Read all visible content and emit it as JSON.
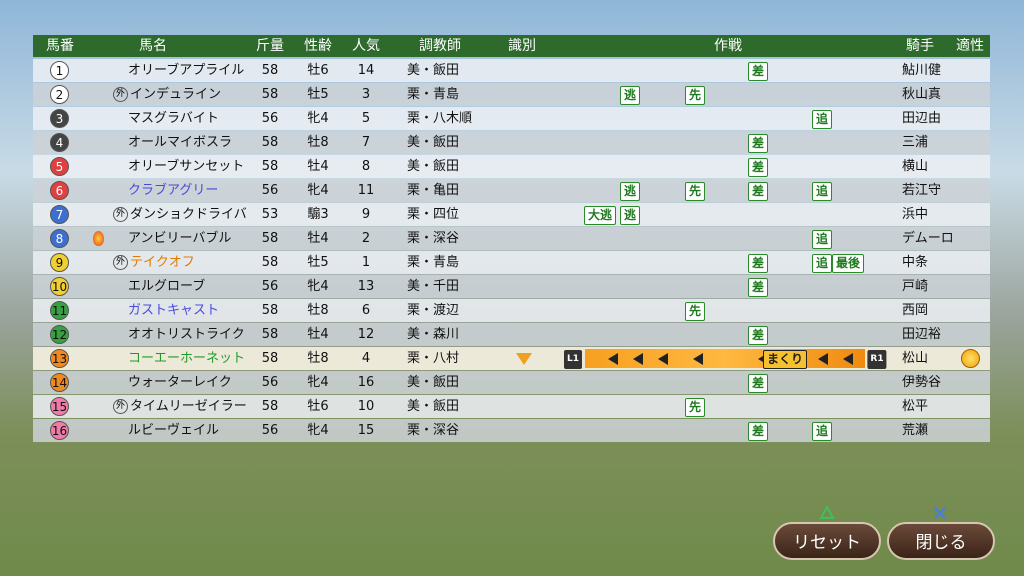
{
  "header": {
    "columns": [
      "馬番",
      "馬名",
      "斤量",
      "性齢",
      "人気",
      "調教師",
      "識別",
      "作戦",
      "騎手",
      "適性"
    ]
  },
  "rows": [
    {
      "number": 1,
      "name": "オリーブアプライル",
      "weight": 58,
      "sex_age": "牡6",
      "popularity": 14,
      "trainer": "美・飯田",
      "tactics": [
        "差"
      ],
      "jockey": "鮎川健"
    },
    {
      "number": 2,
      "mark": "外",
      "name": "インデュライン",
      "weight": 58,
      "sex_age": "牡5",
      "popularity": 3,
      "trainer": "栗・青島",
      "tactics": [
        "逃",
        "先"
      ],
      "jockey": "秋山真"
    },
    {
      "number": 3,
      "name": "マスグラバイト",
      "weight": 56,
      "sex_age": "牝4",
      "popularity": 5,
      "trainer": "栗・八木順",
      "tactics": [
        "追"
      ],
      "jockey": "田辺由"
    },
    {
      "number": 4,
      "name": "オールマイボスラ",
      "weight": 58,
      "sex_age": "牡8",
      "popularity": 7,
      "trainer": "美・飯田",
      "tactics": [
        "差"
      ],
      "jockey": "三浦"
    },
    {
      "number": 5,
      "name": "オリーブサンセット",
      "weight": 58,
      "sex_age": "牡4",
      "popularity": 8,
      "trainer": "美・飯田",
      "tactics": [
        "差"
      ],
      "jockey": "横山"
    },
    {
      "number": 6,
      "name": "クラブアグリー",
      "name_color": "#4a4ad8",
      "weight": 56,
      "sex_age": "牝4",
      "popularity": 11,
      "trainer": "栗・亀田",
      "tactics": [
        "逃",
        "先",
        "差",
        "追"
      ],
      "jockey": "若江守"
    },
    {
      "number": 7,
      "mark": "外",
      "name": "ダンショクドライバ",
      "weight": 53,
      "sex_age": "騸3",
      "popularity": 9,
      "trainer": "栗・四位",
      "tactics": [
        "大逃",
        "逃"
      ],
      "jockey": "浜中"
    },
    {
      "number": 8,
      "name": "アンビリーバブル",
      "weight": 58,
      "sex_age": "牡4",
      "popularity": 2,
      "trainer": "栗・深谷",
      "tactics": [
        "追"
      ],
      "jockey": "デムーロ"
    },
    {
      "number": 9,
      "mark": "外",
      "name": "テイクオフ",
      "name_color": "#e07b00",
      "weight": 58,
      "sex_age": "牡5",
      "popularity": 1,
      "trainer": "栗・青島",
      "tactics": [
        "差",
        "追",
        "最後"
      ],
      "jockey": "中条"
    },
    {
      "number": 10,
      "name": "エルグローブ",
      "weight": 56,
      "sex_age": "牝4",
      "popularity": 13,
      "trainer": "美・千田",
      "tactics": [
        "差"
      ],
      "jockey": "戸崎"
    },
    {
      "number": 11,
      "name": "ガストキャスト",
      "name_color": "#4a4ad8",
      "weight": 58,
      "sex_age": "牡8",
      "popularity": 6,
      "trainer": "栗・渡辺",
      "tactics": [
        "先"
      ],
      "jockey": "西岡"
    },
    {
      "number": 12,
      "name": "オオトリストライク",
      "weight": 58,
      "sex_age": "牡4",
      "popularity": 12,
      "trainer": "美・森川",
      "tactics": [
        "差"
      ],
      "jockey": "田辺裕"
    },
    {
      "number": 13,
      "name": "コーエーホーネット",
      "name_color": "#1f9a2a",
      "weight": 58,
      "sex_age": "牡8",
      "popularity": 4,
      "trainer": "栗・八村",
      "tactics": [
        "まくり"
      ],
      "range_labels": [
        "L1",
        "R1"
      ],
      "jockey": "松山"
    },
    {
      "number": 14,
      "name": "ウォーターレイク",
      "weight": 56,
      "sex_age": "牝4",
      "popularity": 16,
      "trainer": "美・飯田",
      "tactics": [
        "差"
      ],
      "jockey": "伊勢谷"
    },
    {
      "number": 15,
      "mark": "外",
      "name": "タイムリーゼイラー",
      "weight": 58,
      "sex_age": "牡6",
      "popularity": 10,
      "trainer": "美・飯田",
      "tactics": [
        "先"
      ],
      "jockey": "松平"
    },
    {
      "number": 16,
      "name": "ルビーヴェイル",
      "weight": 56,
      "sex_age": "牝4",
      "popularity": 15,
      "trainer": "栗・深谷",
      "tactics": [
        "差",
        "追"
      ],
      "jockey": "荒瀬"
    }
  ],
  "buttons": [
    "リセット",
    "閉じる"
  ]
}
